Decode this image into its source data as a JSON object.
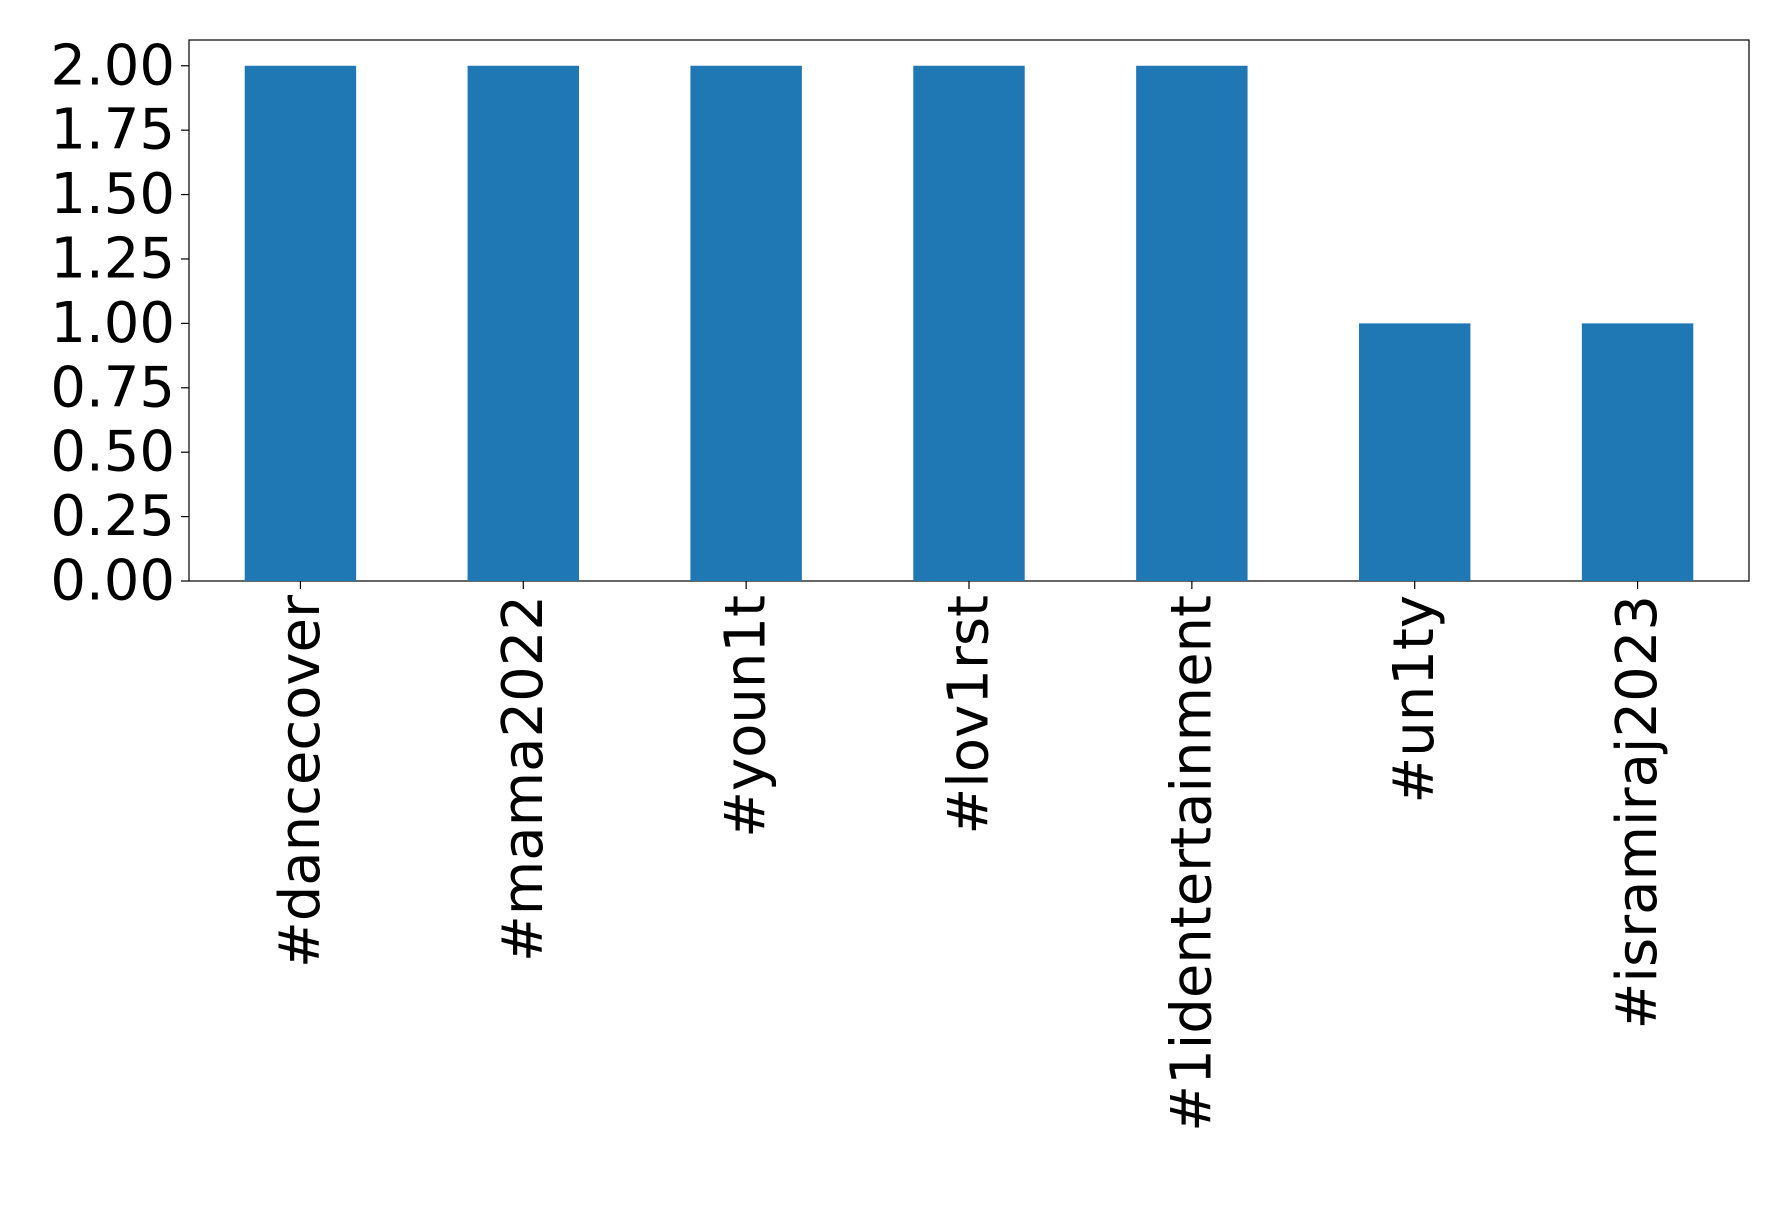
{
  "chart_data": {
    "type": "bar",
    "categories": [
      "#dancecover",
      "#mama2022",
      "#youn1t",
      "#lov1rst",
      "#1identertainment",
      "#un1ty",
      "#isramiraj2023"
    ],
    "values": [
      2,
      2,
      2,
      2,
      2,
      1,
      1
    ],
    "color": "#1f77b4",
    "ylim": [
      0,
      2.1
    ],
    "yticks": [
      {
        "value": 0,
        "label": "0.00"
      },
      {
        "value": 0.25,
        "label": "0.25"
      },
      {
        "value": 0.5,
        "label": "0.50"
      },
      {
        "value": 0.75,
        "label": "0.75"
      },
      {
        "value": 1,
        "label": "1.00"
      },
      {
        "value": 1.25,
        "label": "1.25"
      },
      {
        "value": 1.5,
        "label": "1.50"
      },
      {
        "value": 1.75,
        "label": "1.75"
      },
      {
        "value": 2,
        "label": "2.00"
      }
    ],
    "grid": false
  }
}
